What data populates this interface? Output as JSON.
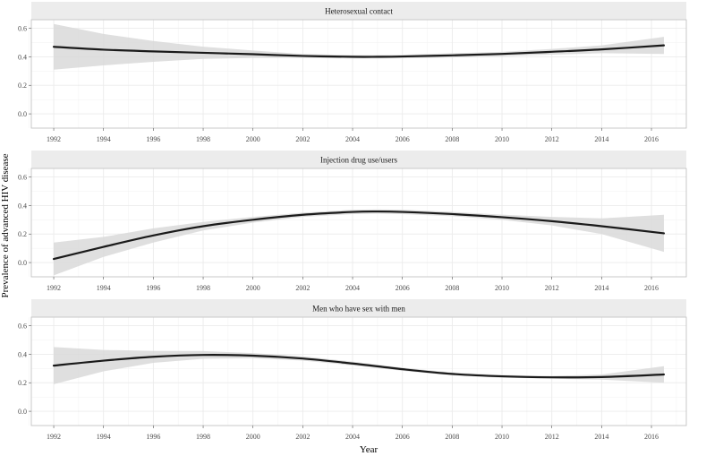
{
  "chart_data": {
    "type": "line",
    "xlabel": "Year",
    "ylabel": "Prevalence of advanced HIV disease",
    "xlim": [
      1991.1,
      2017.4
    ],
    "ylim": [
      -0.1,
      0.66
    ],
    "x_ticks": [
      "1992",
      "1994",
      "1996",
      "1998",
      "2000",
      "2002",
      "2004",
      "2006",
      "2008",
      "2010",
      "2012",
      "2014",
      "2016"
    ],
    "y_ticks": [
      "0.0",
      "0.2",
      "0.4",
      "0.6"
    ],
    "grid": true,
    "colors": {
      "line": "#1a1a1a",
      "ribbon": "#d9d9d9",
      "strip": "#ececec",
      "panel_border": "#bdbdbd",
      "grid": "#ebebeb"
    },
    "panels": [
      {
        "title": "Heterosexual contact",
        "x": [
          1992,
          1994,
          1996,
          1998,
          2000,
          2002,
          2004,
          2005,
          2006,
          2008,
          2010,
          2012,
          2014,
          2016.5
        ],
        "y": [
          0.47,
          0.45,
          0.438,
          0.428,
          0.418,
          0.406,
          0.4,
          0.4,
          0.402,
          0.41,
          0.42,
          0.435,
          0.452,
          0.48
        ],
        "lower": [
          0.31,
          0.34,
          0.365,
          0.385,
          0.392,
          0.392,
          0.388,
          0.388,
          0.39,
          0.395,
          0.405,
          0.415,
          0.425,
          0.42
        ],
        "upper": [
          0.63,
          0.56,
          0.511,
          0.471,
          0.444,
          0.42,
          0.412,
          0.412,
          0.414,
          0.425,
          0.435,
          0.455,
          0.48,
          0.54
        ]
      },
      {
        "title": "Injection drug use/users",
        "x": [
          1992,
          1994,
          1996,
          1998,
          2000,
          2002,
          2004,
          2005,
          2006,
          2008,
          2010,
          2012,
          2014,
          2016.5
        ],
        "y": [
          0.025,
          0.11,
          0.19,
          0.255,
          0.3,
          0.335,
          0.355,
          0.358,
          0.355,
          0.34,
          0.318,
          0.29,
          0.255,
          0.205
        ],
        "lower": [
          -0.09,
          0.04,
          0.14,
          0.225,
          0.28,
          0.32,
          0.34,
          0.343,
          0.34,
          0.325,
          0.3,
          0.26,
          0.2,
          0.075
        ],
        "upper": [
          0.14,
          0.18,
          0.24,
          0.285,
          0.32,
          0.35,
          0.37,
          0.373,
          0.37,
          0.355,
          0.336,
          0.32,
          0.31,
          0.335
        ]
      },
      {
        "title": "Men who have sex with men",
        "x": [
          1992,
          1994,
          1996,
          1998,
          2000,
          2002,
          2004,
          2006,
          2008,
          2010,
          2012,
          2014,
          2016.5
        ],
        "y": [
          0.32,
          0.355,
          0.382,
          0.395,
          0.39,
          0.37,
          0.335,
          0.295,
          0.262,
          0.245,
          0.238,
          0.24,
          0.258
        ],
        "lower": [
          0.19,
          0.28,
          0.34,
          0.368,
          0.372,
          0.355,
          0.322,
          0.284,
          0.252,
          0.235,
          0.228,
          0.222,
          0.2
        ],
        "upper": [
          0.45,
          0.43,
          0.424,
          0.422,
          0.408,
          0.385,
          0.348,
          0.306,
          0.272,
          0.255,
          0.248,
          0.258,
          0.316
        ]
      }
    ]
  }
}
